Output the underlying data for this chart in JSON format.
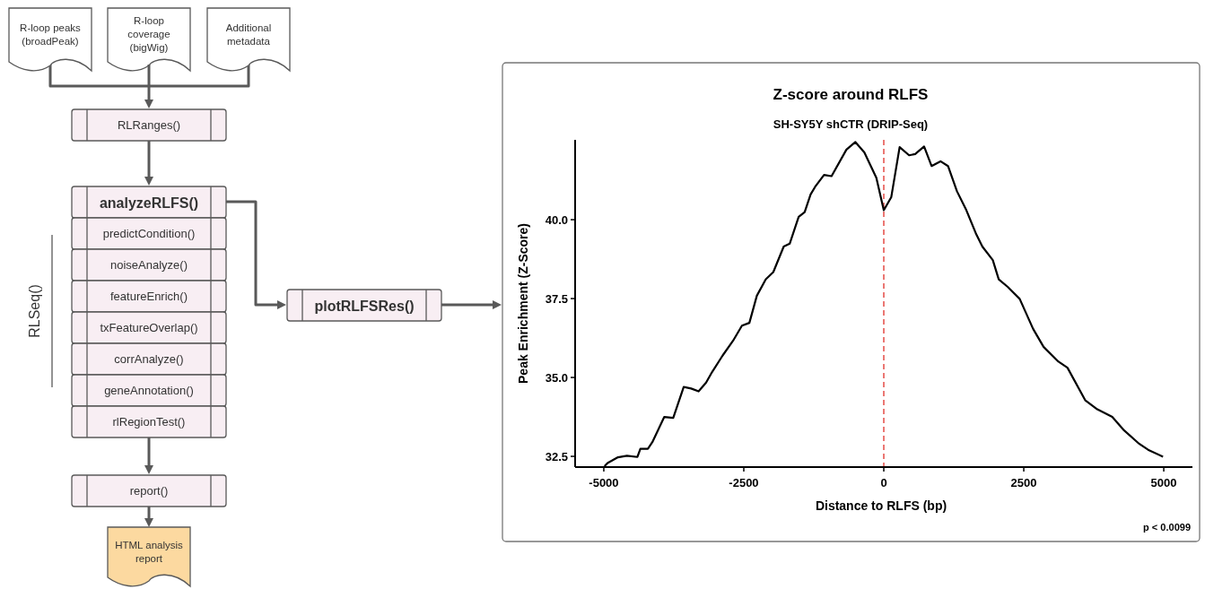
{
  "chart_data": [
    {
      "type": "other",
      "annotations": [
        "R-loop peaks (broadPeak)",
        "R-loop coverage (bigWig)",
        "Additional metadata",
        "RLRanges()",
        "analyzeRLFS()",
        "predictCondition()",
        "noiseAnalyze()",
        "featureEnrich()",
        "txFeatureOverlap()",
        "corrAnalyze()",
        "geneAnnotation()",
        "rlRegionTest()",
        "report()",
        "HTML analysis report",
        "plotRLFSRes()",
        "RLSeq()"
      ]
    },
    {
      "type": "line",
      "title": "Z-score around RLFS",
      "subtitle": "SH-SY5Y shCTR (DRIP-Seq)",
      "xlabel": "Distance to RLFS (bp)",
      "ylabel": "Peak Enrichment (Z-Score)",
      "series": [
        {
          "color": "#000000",
          "x": [
            -4987,
            -4933,
            -4747,
            -4587,
            -4400,
            -4347,
            -4213,
            -4133,
            -3920,
            -3760,
            -3573,
            -3440,
            -3307,
            -3173,
            -3067,
            -2880,
            -2693,
            -2533,
            -2400,
            -2267,
            -2107,
            -1973,
            -1787,
            -1680,
            -1520,
            -1413,
            -1307,
            -1227,
            -1067,
            -933,
            -667,
            -507,
            -347,
            -133,
            0,
            133,
            283,
            453,
            560,
            720,
            853,
            1013,
            1147,
            1307,
            1467,
            1653,
            1760,
            1947,
            2053,
            2213,
            2427,
            2667,
            2853,
            3120,
            3280,
            3600,
            3813,
            4080,
            4293,
            4560,
            4720,
            4987
          ],
          "values": [
            32.19,
            32.29,
            32.47,
            32.52,
            32.48,
            32.74,
            32.74,
            32.95,
            33.75,
            33.72,
            34.7,
            34.65,
            34.56,
            34.84,
            35.17,
            35.69,
            36.16,
            36.64,
            36.73,
            37.59,
            38.11,
            38.34,
            39.15,
            39.24,
            40.09,
            40.24,
            40.8,
            41.04,
            41.42,
            41.38,
            42.22,
            42.46,
            42.13,
            41.33,
            40.3,
            40.71,
            42.3,
            42.04,
            42.08,
            42.32,
            41.7,
            41.85,
            41.7,
            40.9,
            40.33,
            39.53,
            39.15,
            38.72,
            38.11,
            37.87,
            37.49,
            36.54,
            35.97,
            35.5,
            35.31,
            34.27,
            33.99,
            33.75,
            33.32,
            32.9,
            32.71,
            32.49
          ]
        }
      ],
      "xlim": [
        -5512,
        5512
      ],
      "ylim": [
        32.16,
        42.53
      ],
      "xticks": [
        -5000,
        -2500,
        0,
        2500,
        5000
      ],
      "yticks": [
        {
          "value": 32.5,
          "label": "32.5"
        },
        {
          "value": 35,
          "label": "35.0"
        },
        {
          "value": 37.5,
          "label": "37.5"
        },
        {
          "value": 40,
          "label": "40.0"
        }
      ],
      "ref_lines": [
        {
          "axis": "x",
          "value": 0,
          "color": "#e0302a",
          "line_style": "dashed"
        }
      ],
      "annotations": [
        "p < 0.0099"
      ]
    }
  ]
}
